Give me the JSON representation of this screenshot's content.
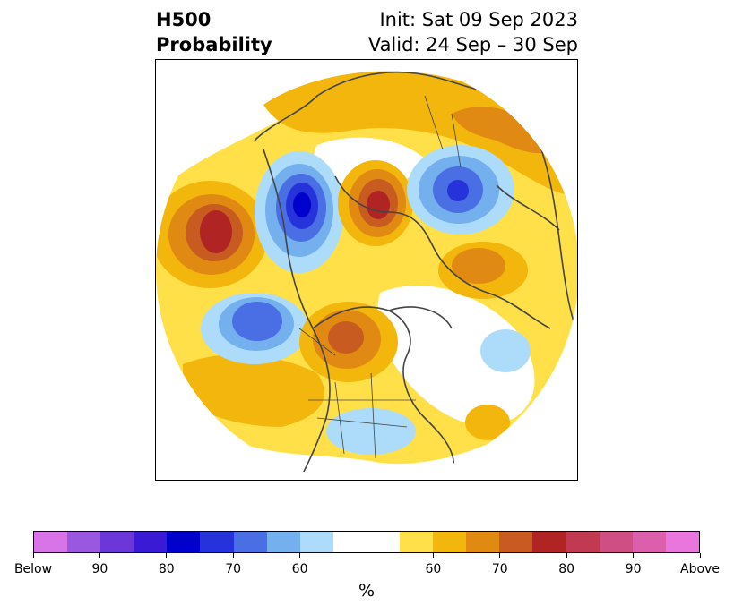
{
  "title": {
    "variable": "H500",
    "quantity": "Probability",
    "init": "Init: Sat 09 Sep 2023",
    "valid": "Valid: 24 Sep – 30 Sep"
  },
  "colorbar": {
    "units": "%",
    "colors": [
      "#d873e8",
      "#9a57e0",
      "#6b37d8",
      "#3a1ad4",
      "#0000cd",
      "#2633da",
      "#4a6ee3",
      "#74afee",
      "#acdcfa",
      "#ffffff",
      "#ffe048",
      "#f3b60c",
      "#e08a13",
      "#c85b1f",
      "#b02424",
      "#c23a52",
      "#cf4e83",
      "#dc5fae",
      "#e876dc"
    ],
    "tick_labels": [
      "Below",
      "90",
      "80",
      "70",
      "60",
      "60",
      "70",
      "80",
      "90",
      "Above"
    ]
  },
  "map": {
    "projection": "north-polar-stereographic",
    "regions": [
      {
        "name": "north-pacific-above",
        "category": "Above",
        "peak_percent": 80
      },
      {
        "name": "western-canada-below",
        "category": "Below",
        "peak_percent": 80
      },
      {
        "name": "eastern-siberia-above",
        "category": "Above",
        "peak_percent": 80
      },
      {
        "name": "northern-europe-below",
        "category": "Below",
        "peak_percent": 70
      },
      {
        "name": "gulf-of-alaska-below",
        "category": "Below",
        "peak_percent": 70
      },
      {
        "name": "central-canada-above",
        "category": "Above",
        "peak_percent": 70
      },
      {
        "name": "eastern-us-below",
        "category": "Below",
        "peak_percent": 60
      },
      {
        "name": "north-atlantic-below",
        "category": "Below",
        "peak_percent": 60
      }
    ]
  }
}
